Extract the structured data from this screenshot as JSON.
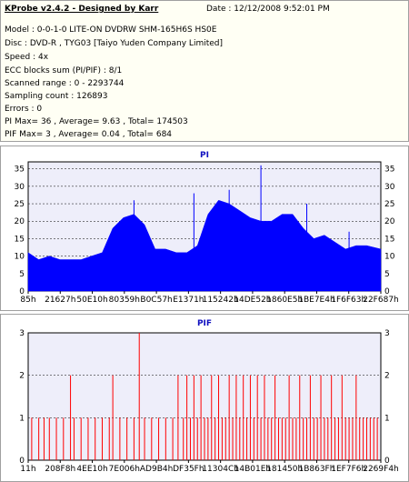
{
  "info": {
    "title": "KProbe v2.4.2 - Designed by Karr",
    "date": "Date : 12/12/2008 9:52:01 PM",
    "lines": [
      "Model : 0-0-1-0 LITE-ON DVDRW SHM-165H6S HS0E",
      "Disc : DVD-R , TYG03 [Taiyo Yuden Company Limited]",
      "Speed : 4x",
      "ECC blocks sum (PI/PIF) : 8/1",
      "Scanned range : 0 - 2293744",
      "Sampling count : 126893",
      "Errors : 0",
      "PI Max= 36 , Average= 9.63 , Total= 174503",
      "PIF Max= 3 , Average= 0.04 , Total= 684"
    ]
  },
  "colors": {
    "pi_fill": "#0000ff",
    "pif_line": "#ff0000",
    "plot_bg": "#eeeefa",
    "grid": "#000000",
    "title": "#1010c0"
  },
  "chart_data": [
    {
      "type": "area",
      "title": "PI",
      "ylim": [
        0,
        37
      ],
      "yticks": [
        0,
        5,
        10,
        15,
        20,
        25,
        30,
        35
      ],
      "xtick_labels": [
        "85h",
        "21627h",
        "50E10h",
        "80359h",
        "B0C57h",
        "E1371h",
        "115242h",
        "14DE52h",
        "1860E5h",
        "1BE7E4h",
        "1F6F63h",
        "22F687h"
      ],
      "x_range": [
        0,
        100
      ],
      "series": [
        {
          "x": [
            0,
            3,
            6,
            9,
            12,
            15,
            18,
            21,
            24,
            27,
            30,
            33,
            36,
            39,
            42,
            45,
            48,
            51,
            54,
            57,
            60,
            63,
            66,
            69,
            72,
            75,
            78,
            81,
            84,
            87,
            90,
            93,
            96,
            100
          ],
          "values": [
            11,
            9,
            10,
            9,
            9,
            9,
            10,
            11,
            18,
            21,
            22,
            19,
            12,
            12,
            11,
            11,
            13,
            22,
            26,
            25,
            23,
            21,
            20,
            20,
            22,
            22,
            18,
            15,
            16,
            14,
            12,
            13,
            13,
            12
          ]
        }
      ],
      "spikes": [
        {
          "x": 30,
          "y": 26
        },
        {
          "x": 47,
          "y": 28
        },
        {
          "x": 57,
          "y": 29
        },
        {
          "x": 66,
          "y": 36
        },
        {
          "x": 79,
          "y": 25
        },
        {
          "x": 91,
          "y": 17
        }
      ]
    },
    {
      "type": "bar",
      "title": "PIF",
      "ylim": [
        0,
        3
      ],
      "yticks": [
        0,
        1,
        2,
        3
      ],
      "xtick_labels": [
        "11h",
        "208F8h",
        "4EE10h",
        "7E006h",
        "AD9B4h",
        "DF35Fh",
        "11304Ch",
        "14B01Eh",
        "181450h",
        "1B863Fh",
        "1EF7F6h",
        "2269F4h"
      ],
      "x_range": [
        0,
        100
      ],
      "points": [
        {
          "x": 1,
          "y": 1
        },
        {
          "x": 3,
          "y": 1
        },
        {
          "x": 4.5,
          "y": 1
        },
        {
          "x": 6,
          "y": 1
        },
        {
          "x": 8,
          "y": 1
        },
        {
          "x": 10,
          "y": 1
        },
        {
          "x": 12,
          "y": 2
        },
        {
          "x": 13,
          "y": 1
        },
        {
          "x": 15,
          "y": 1
        },
        {
          "x": 17,
          "y": 1
        },
        {
          "x": 19,
          "y": 1
        },
        {
          "x": 21,
          "y": 1
        },
        {
          "x": 23,
          "y": 1
        },
        {
          "x": 24,
          "y": 2
        },
        {
          "x": 26,
          "y": 1
        },
        {
          "x": 28,
          "y": 1
        },
        {
          "x": 30,
          "y": 1
        },
        {
          "x": 31.5,
          "y": 3
        },
        {
          "x": 33,
          "y": 1
        },
        {
          "x": 35,
          "y": 1
        },
        {
          "x": 37,
          "y": 1
        },
        {
          "x": 39,
          "y": 1
        },
        {
          "x": 41,
          "y": 1
        },
        {
          "x": 42.5,
          "y": 2
        },
        {
          "x": 44,
          "y": 1
        },
        {
          "x": 45,
          "y": 2
        },
        {
          "x": 46,
          "y": 1
        },
        {
          "x": 47,
          "y": 2
        },
        {
          "x": 48,
          "y": 1
        },
        {
          "x": 49,
          "y": 2
        },
        {
          "x": 50,
          "y": 1
        },
        {
          "x": 51,
          "y": 1
        },
        {
          "x": 52,
          "y": 2
        },
        {
          "x": 53,
          "y": 1
        },
        {
          "x": 54,
          "y": 2
        },
        {
          "x": 55,
          "y": 1
        },
        {
          "x": 56,
          "y": 1
        },
        {
          "x": 57,
          "y": 2
        },
        {
          "x": 58,
          "y": 1
        },
        {
          "x": 59,
          "y": 2
        },
        {
          "x": 60,
          "y": 1
        },
        {
          "x": 61,
          "y": 2
        },
        {
          "x": 62,
          "y": 1
        },
        {
          "x": 63,
          "y": 2
        },
        {
          "x": 64,
          "y": 1
        },
        {
          "x": 65,
          "y": 2
        },
        {
          "x": 66,
          "y": 1
        },
        {
          "x": 67,
          "y": 2
        },
        {
          "x": 68,
          "y": 1
        },
        {
          "x": 69,
          "y": 1
        },
        {
          "x": 70,
          "y": 2
        },
        {
          "x": 71,
          "y": 1
        },
        {
          "x": 72,
          "y": 1
        },
        {
          "x": 73,
          "y": 1
        },
        {
          "x": 74,
          "y": 2
        },
        {
          "x": 75,
          "y": 1
        },
        {
          "x": 76,
          "y": 1
        },
        {
          "x": 77,
          "y": 2
        },
        {
          "x": 78,
          "y": 1
        },
        {
          "x": 79,
          "y": 1
        },
        {
          "x": 80,
          "y": 2
        },
        {
          "x": 81,
          "y": 1
        },
        {
          "x": 82,
          "y": 1
        },
        {
          "x": 83,
          "y": 2
        },
        {
          "x": 84,
          "y": 1
        },
        {
          "x": 85,
          "y": 1
        },
        {
          "x": 86,
          "y": 2
        },
        {
          "x": 87,
          "y": 1
        },
        {
          "x": 88,
          "y": 1
        },
        {
          "x": 89,
          "y": 2
        },
        {
          "x": 90,
          "y": 1
        },
        {
          "x": 91,
          "y": 1
        },
        {
          "x": 92,
          "y": 1
        },
        {
          "x": 93,
          "y": 2
        },
        {
          "x": 94,
          "y": 1
        },
        {
          "x": 95,
          "y": 1
        },
        {
          "x": 96,
          "y": 1
        },
        {
          "x": 97,
          "y": 1
        },
        {
          "x": 98,
          "y": 1
        },
        {
          "x": 99,
          "y": 1
        }
      ]
    }
  ]
}
